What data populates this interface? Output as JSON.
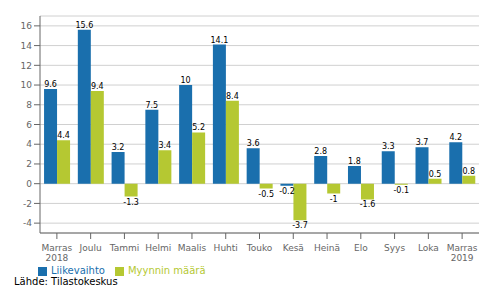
{
  "chart_data": {
    "type": "bar",
    "categories": [
      "Marras\n2018",
      "Joulu",
      "Tammi",
      "Helmi",
      "Maalis",
      "Huhti",
      "Touko",
      "Kesä",
      "Heinä",
      "Elo",
      "Syys",
      "Loka",
      "Marras\n2019"
    ],
    "series": [
      {
        "name": "Liikevaihto",
        "color": "#1a6fad",
        "values": [
          9.6,
          15.6,
          3.2,
          7.5,
          10,
          14.1,
          3.6,
          -0.2,
          2.8,
          1.8,
          3.3,
          3.7,
          4.2
        ]
      },
      {
        "name": "Myynnin määrä",
        "color": "#b5c832",
        "values": [
          4.4,
          9.4,
          -1.3,
          3.4,
          5.2,
          8.4,
          -0.5,
          -3.7,
          -1.0,
          -1.6,
          -0.1,
          0.5,
          0.8
        ]
      }
    ],
    "ylim": [
      -5,
      17
    ],
    "yticks": [
      -4,
      -2,
      0,
      2,
      4,
      6,
      8,
      10,
      12,
      14,
      16
    ],
    "grid": true,
    "legend": "lower left",
    "data_labels": true,
    "annotations": [
      "Lähde: Tilastokeskus"
    ]
  }
}
